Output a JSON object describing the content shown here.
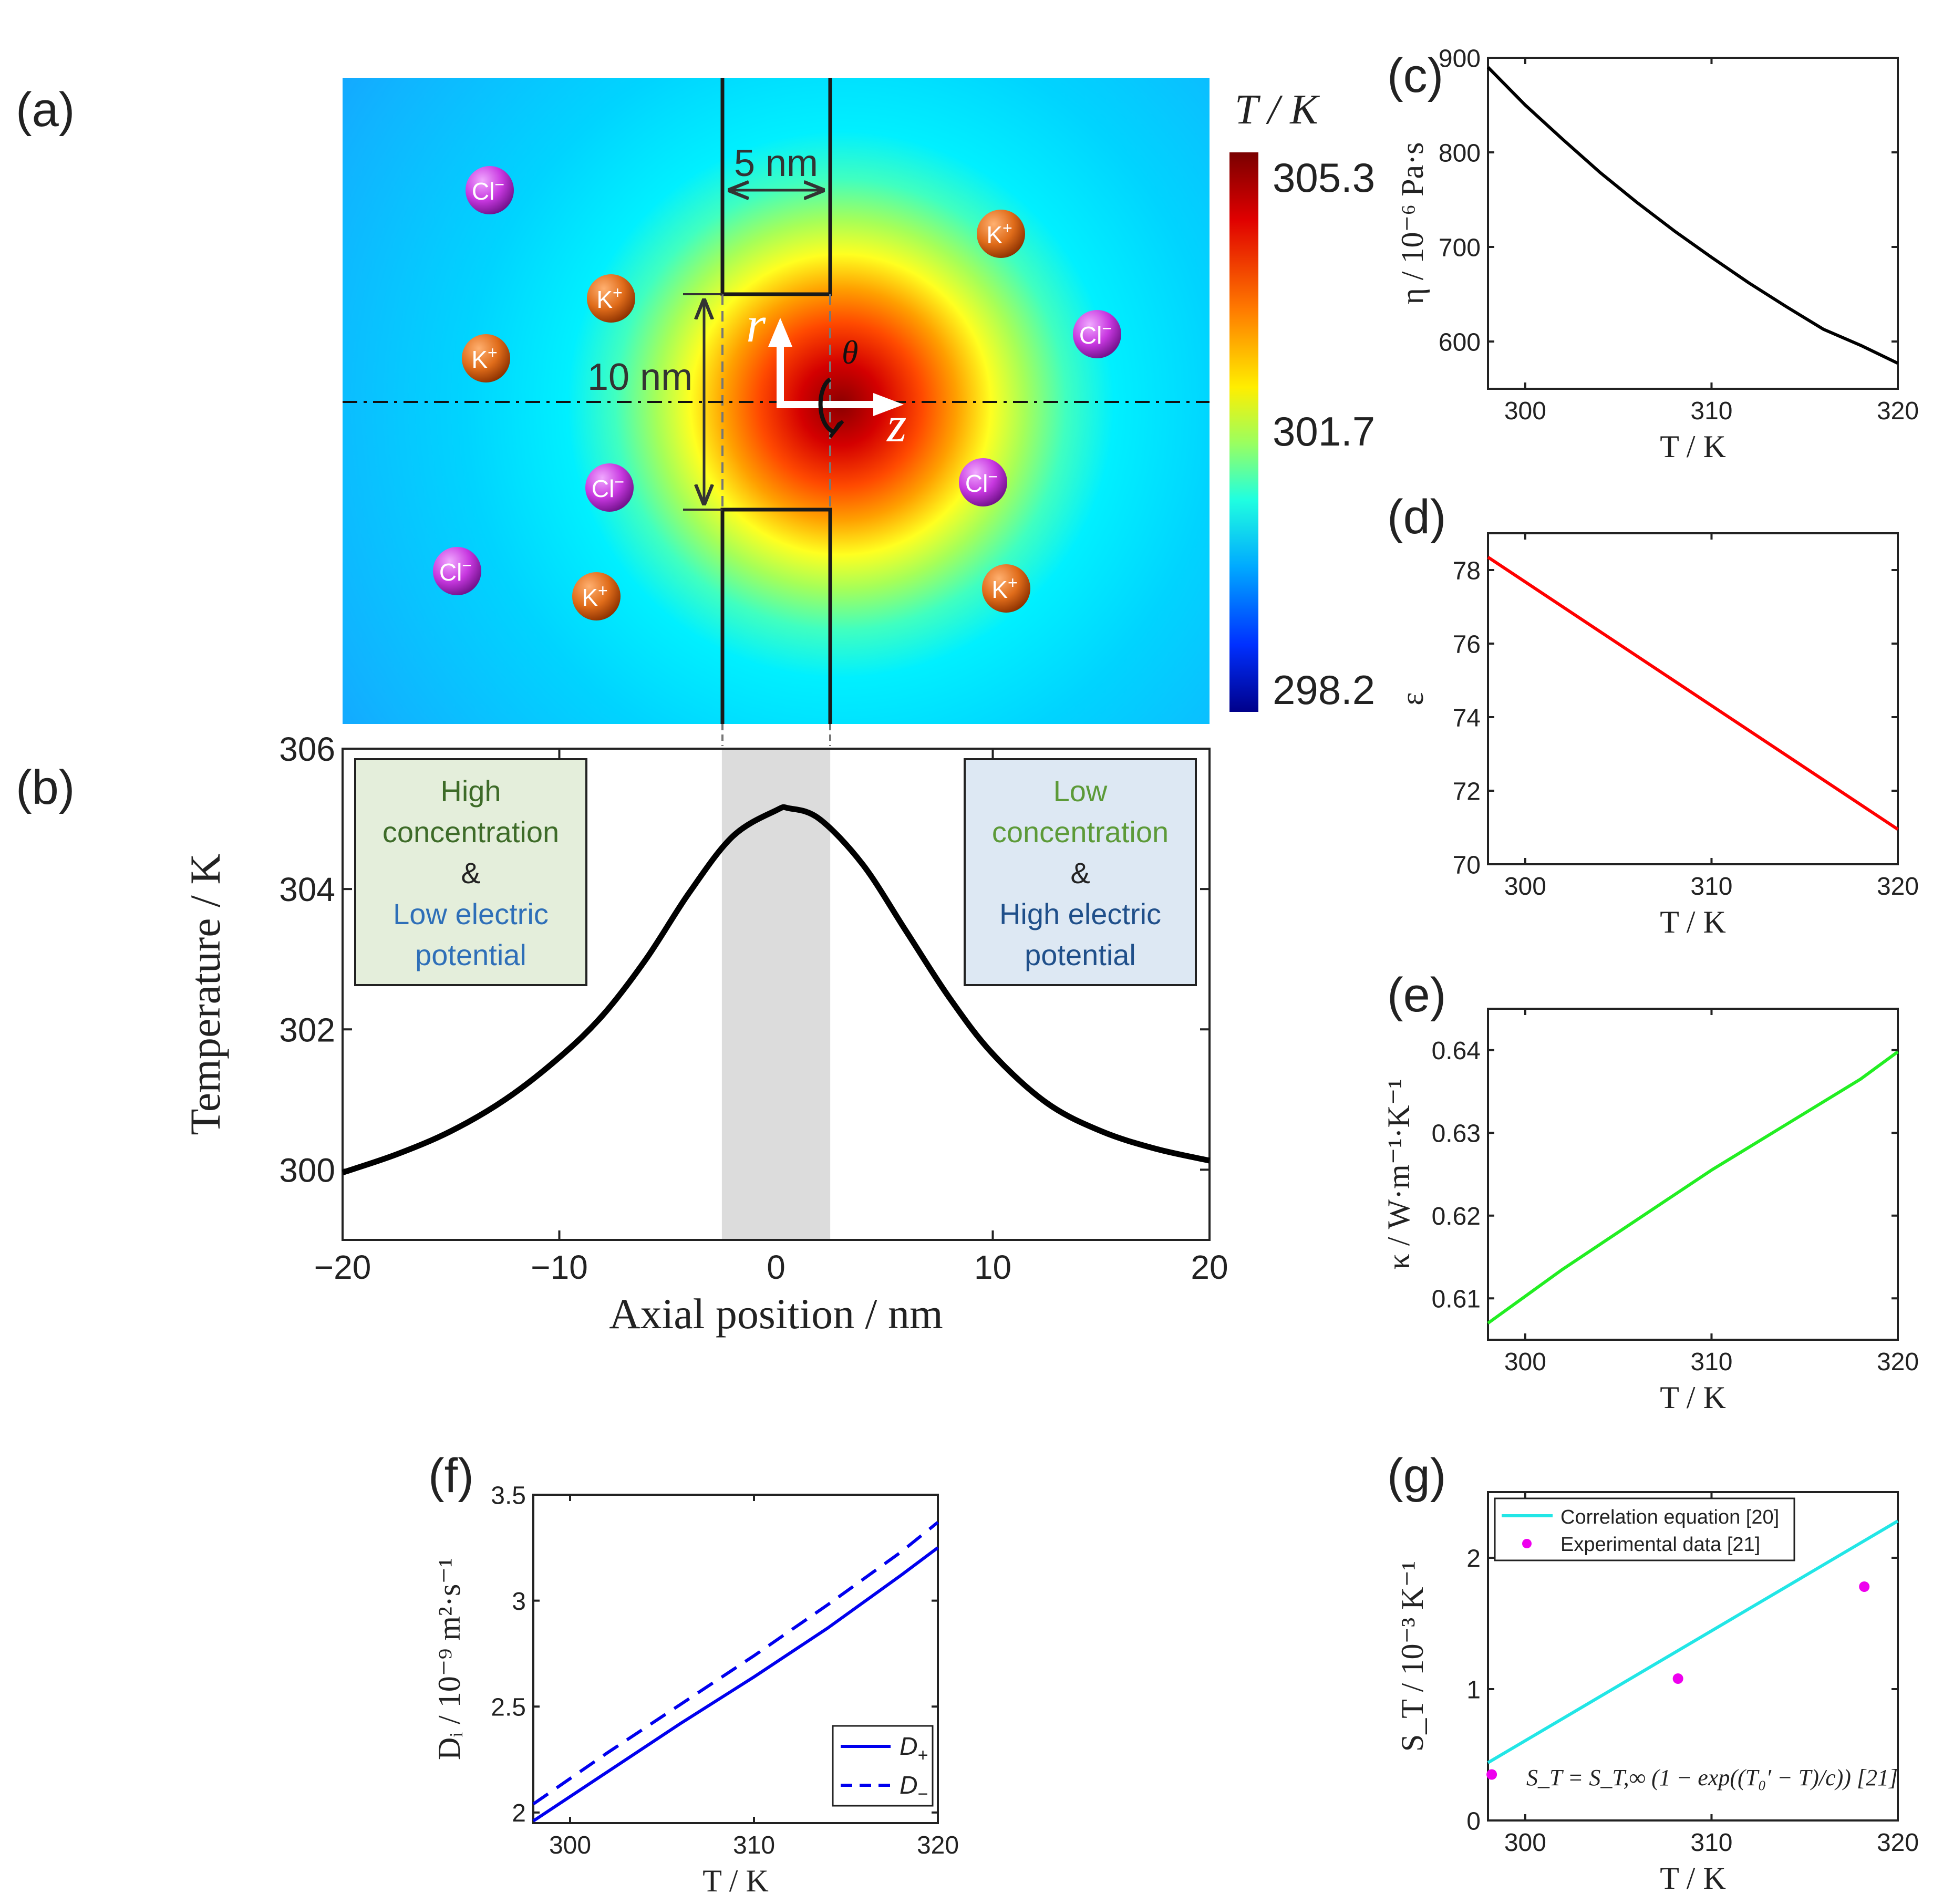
{
  "panel_labels": {
    "a": "(a)",
    "b": "(b)",
    "c": "(c)",
    "d": "(d)",
    "e": "(e)",
    "f": "(f)",
    "g": "(g)"
  },
  "heatmap": {
    "colorbar_title": "T / K",
    "colorbar_ticks": [
      "305.3",
      "301.7",
      "298.2"
    ],
    "dim_width": "5 nm",
    "dim_height": "10 nm",
    "axis_r": "r",
    "axis_z": "z",
    "axis_theta": "θ",
    "ions": [
      {
        "label": "Cl",
        "charge": "−"
      },
      {
        "label": "K",
        "charge": "+"
      },
      {
        "label": "K",
        "charge": "+"
      },
      {
        "label": "Cl",
        "charge": "−"
      },
      {
        "label": "K",
        "charge": "+"
      },
      {
        "label": "Cl",
        "charge": "−"
      },
      {
        "label": "Cl",
        "charge": "−"
      },
      {
        "label": "Cl",
        "charge": "−"
      },
      {
        "label": "K",
        "charge": "+"
      },
      {
        "label": "K",
        "charge": "+"
      }
    ],
    "colors": {
      "cation": "#e06c1a",
      "anion": "#c838e0"
    }
  },
  "boxes": {
    "left": {
      "line1": "High",
      "line2": "concentration",
      "line3": "&",
      "line4": "Low electric",
      "line5": "potential"
    },
    "right": {
      "line1": "Low",
      "line2": "concentration",
      "line3": "&",
      "line4": "High electric",
      "line5": "potential"
    }
  },
  "chart_data": [
    {
      "id": "b",
      "type": "line",
      "xlabel": "Axial position / nm",
      "ylabel": "Temperature / K",
      "xlim": [
        -20,
        20
      ],
      "ylim": [
        299,
        306
      ],
      "xticks": [
        -20,
        -10,
        0,
        10,
        20
      ],
      "xtick_labels": [
        "−20",
        "−10",
        "0",
        "10",
        "20"
      ],
      "yticks": [
        300,
        302,
        304,
        306
      ],
      "ytick_labels": [
        "300",
        "302",
        "304",
        "306"
      ],
      "shaded_region": [
        -2.5,
        2.5
      ],
      "x": [
        -20,
        -17.5,
        -15,
        -12.5,
        -10,
        -8,
        -6,
        -4,
        -2,
        0,
        0.6,
        2,
        4,
        6,
        8,
        10,
        12.5,
        15,
        17.5,
        20
      ],
      "y": [
        299.96,
        300.22,
        300.55,
        301.0,
        301.6,
        302.2,
        303.0,
        303.95,
        304.75,
        305.12,
        305.15,
        305.0,
        304.35,
        303.4,
        302.45,
        301.65,
        300.95,
        300.55,
        300.3,
        300.13
      ]
    },
    {
      "id": "c",
      "type": "line",
      "xlabel": "T / K",
      "ylabel": "η / 10⁻⁶ Pa·s",
      "xlim": [
        298,
        320
      ],
      "ylim": [
        550,
        900
      ],
      "xticks": [
        300,
        310,
        320
      ],
      "yticks": [
        600,
        700,
        800,
        900
      ],
      "x": [
        298,
        300,
        302,
        304,
        306,
        308,
        310,
        312,
        314,
        316,
        318,
        320
      ],
      "y": [
        890,
        850,
        814,
        779,
        747,
        717,
        689,
        662,
        637,
        613,
        596,
        577
      ]
    },
    {
      "id": "d",
      "type": "line",
      "xlabel": "T / K",
      "ylabel": "ε",
      "xlim": [
        298,
        320
      ],
      "ylim": [
        70,
        79
      ],
      "xticks": [
        300,
        310,
        320
      ],
      "yticks": [
        70,
        72,
        74,
        76,
        78
      ],
      "x": [
        298,
        320
      ],
      "y": [
        78.35,
        70.95
      ]
    },
    {
      "id": "e",
      "type": "line",
      "xlabel": "T / K",
      "ylabel": "κ / W·m⁻¹·K⁻¹",
      "xlim": [
        298,
        320
      ],
      "ylim": [
        0.605,
        0.645
      ],
      "xticks": [
        300,
        310,
        320
      ],
      "yticks": [
        0.61,
        0.62,
        0.63,
        0.64
      ],
      "x": [
        298,
        302,
        306,
        310,
        314,
        318,
        320
      ],
      "y": [
        0.607,
        0.6135,
        0.6195,
        0.6255,
        0.631,
        0.6365,
        0.6398
      ]
    },
    {
      "id": "f",
      "type": "line",
      "xlabel": "T / K",
      "ylabel": "Dᵢ / 10⁻⁹ m²·s⁻¹",
      "xlim": [
        298,
        320
      ],
      "ylim": [
        1.95,
        3.5
      ],
      "xticks": [
        300,
        310,
        320
      ],
      "yticks": [
        2,
        2.5,
        3,
        3.5
      ],
      "series": [
        {
          "name": "D+",
          "style": "solid",
          "x": [
            298,
            302,
            306,
            310,
            314,
            318,
            320
          ],
          "y": [
            1.96,
            2.19,
            2.42,
            2.64,
            2.87,
            3.12,
            3.25
          ]
        },
        {
          "name": "D−",
          "style": "dashed",
          "x": [
            298,
            302,
            306,
            310,
            314,
            318,
            320
          ],
          "y": [
            2.04,
            2.28,
            2.51,
            2.74,
            2.98,
            3.23,
            3.37
          ]
        }
      ],
      "legend": [
        "D+",
        "D−"
      ]
    },
    {
      "id": "g",
      "type": "line",
      "xlabel": "T / K",
      "ylabel": "S_T / 10⁻³ K⁻¹",
      "xlim": [
        298,
        320
      ],
      "ylim": [
        0,
        2.5
      ],
      "xticks": [
        300,
        310,
        320
      ],
      "yticks": [
        0,
        1,
        2
      ],
      "series": [
        {
          "name": "Correlation equation [20]",
          "x": [
            298,
            320
          ],
          "y": [
            0.44,
            2.28
          ]
        },
        {
          "name": "Experimental data [21]",
          "x": [
            298.2,
            308.2,
            318.2
          ],
          "y": [
            0.35,
            1.08,
            1.78
          ]
        }
      ],
      "equation": "S_T = S_T,∞ (1 − exp((T₀′ − T)/c)) [21]"
    }
  ]
}
